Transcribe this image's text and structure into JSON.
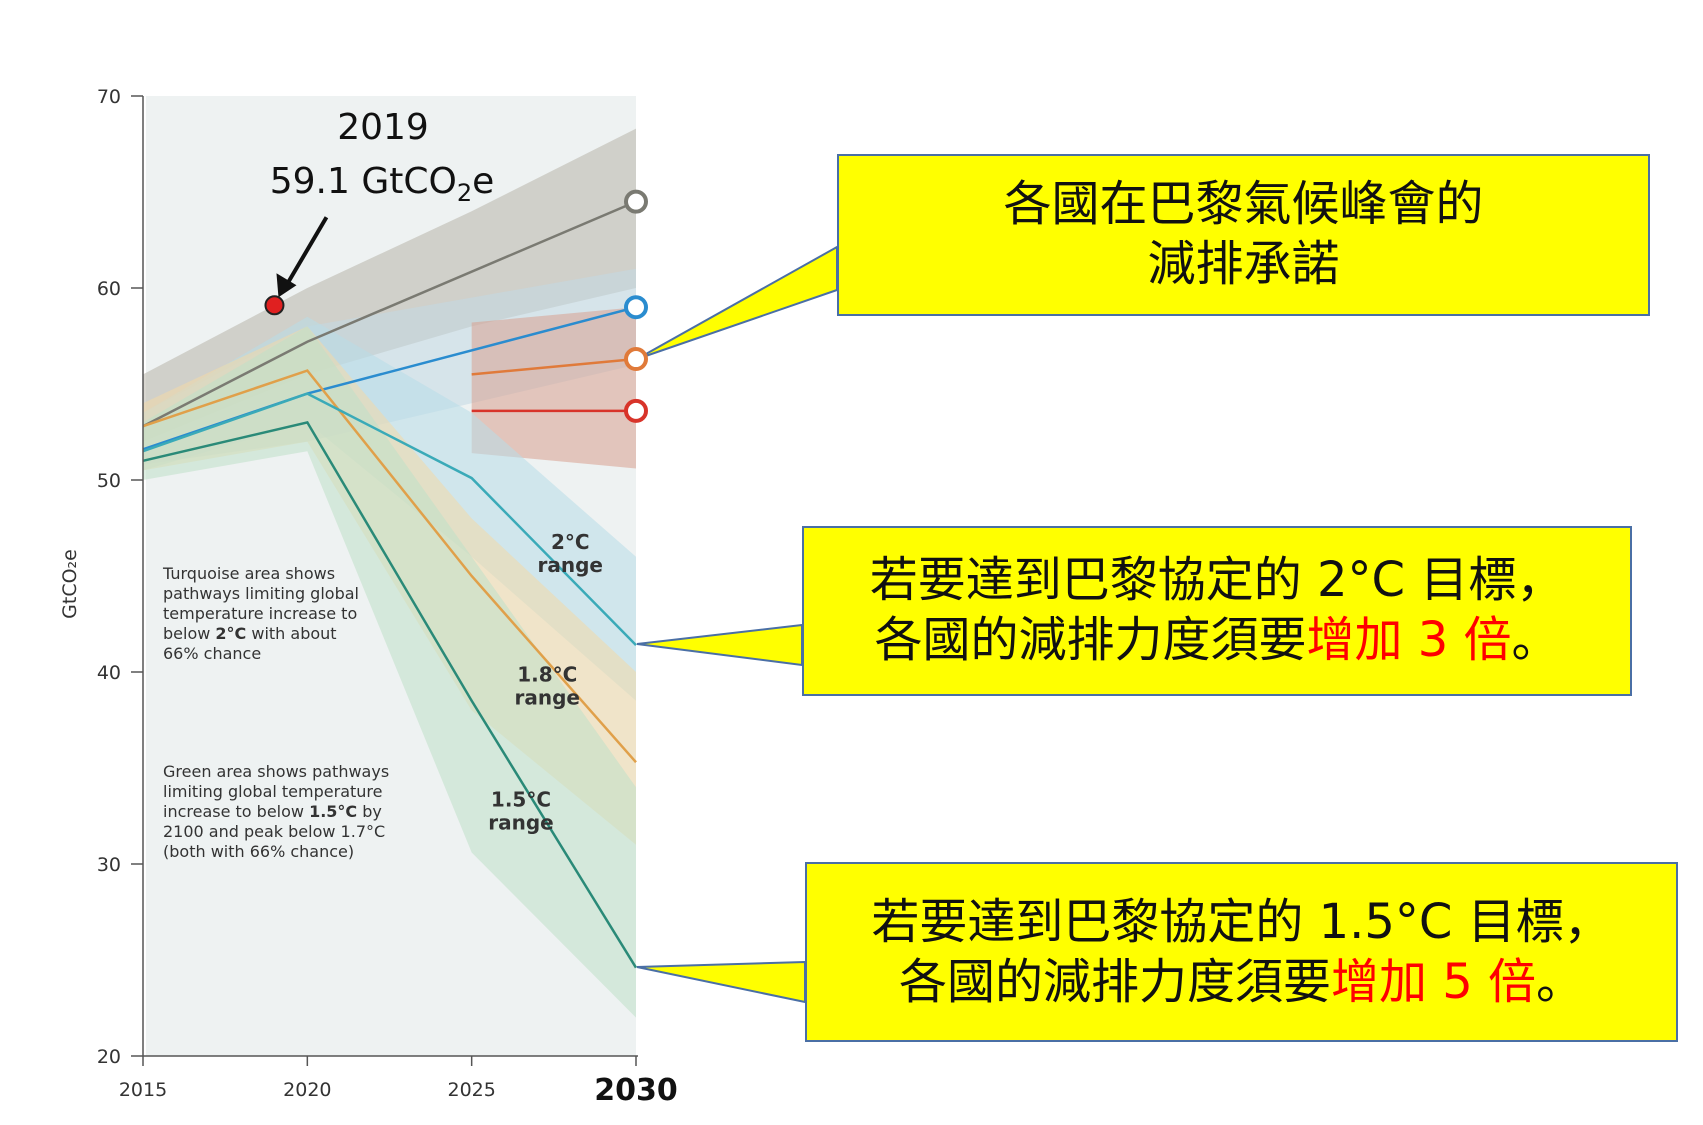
{
  "chart_data": {
    "type": "line",
    "ylabel": "GtCO₂e",
    "ylim": [
      20,
      70
    ],
    "yticks": [
      20,
      30,
      40,
      50,
      60,
      70
    ],
    "xlim": [
      2015,
      2030
    ],
    "xticks": [
      2015,
      2020,
      2025,
      2030
    ],
    "xtick_labels": [
      "2015",
      "2020",
      "2025",
      "2030"
    ],
    "bold_xtick": "2030",
    "grid": false,
    "series": [
      {
        "color": "#7a7a72",
        "x": [
          2015,
          2020,
          2030
        ],
        "y": [
          52.8,
          57.2,
          64.5
        ]
      },
      {
        "color": "#2a8ccf",
        "x": [
          2015,
          2020,
          2030
        ],
        "y": [
          51.6,
          54.5,
          59.0
        ]
      },
      {
        "color": "#e07a3a",
        "x": [
          2025,
          2030
        ],
        "y": [
          55.5,
          56.3
        ]
      },
      {
        "color": "#d8342a",
        "x": [
          2025,
          2030
        ],
        "y": [
          53.6,
          53.6
        ]
      },
      {
        "color": "#e0a04a",
        "x": [
          2015,
          2020,
          2025,
          2030
        ],
        "y": [
          52.8,
          55.7,
          45.0,
          35.3
        ]
      },
      {
        "color": "#3aaab8",
        "x": [
          2015,
          2020,
          2025,
          2030
        ],
        "y": [
          51.5,
          54.5,
          50.1,
          41.4
        ]
      },
      {
        "color": "#2a8a78",
        "x": [
          2015,
          2020,
          2025,
          2030
        ],
        "y": [
          51.0,
          53.0,
          38.5,
          24.6
        ]
      }
    ],
    "bands": [
      {
        "color": "#b8b4aa",
        "x": [
          2015,
          2020,
          2025,
          2030
        ],
        "lower": [
          52.0,
          55.5,
          58.0,
          60.0
        ],
        "upper": [
          55.5,
          60.0,
          64.0,
          68.3
        ]
      },
      {
        "color": "#c2d8e4",
        "x": [
          2015,
          2020,
          2025,
          2030
        ],
        "lower": [
          50.8,
          52.0,
          54.0,
          56.0
        ],
        "upper": [
          53.5,
          58.0,
          59.5,
          61.0
        ]
      },
      {
        "color": "#d9a090",
        "x": [
          2025,
          2030
        ],
        "lower": [
          51.4,
          50.6
        ],
        "upper": [
          58.2,
          59.0
        ]
      },
      {
        "color": "#b8dce8",
        "x": [
          2015,
          2020,
          2025,
          2030
        ],
        "lower": [
          50.5,
          53.0,
          46.0,
          38.5
        ],
        "upper": [
          53.5,
          58.5,
          53.5,
          46.0
        ]
      },
      {
        "color": "#f2d8a8",
        "x": [
          2015,
          2020,
          2025,
          2030
        ],
        "lower": [
          50.5,
          52.0,
          38.0,
          31.0
        ],
        "upper": [
          54.0,
          58.0,
          48.0,
          40.0
        ]
      },
      {
        "color": "#bfe0c8",
        "x": [
          2015,
          2020,
          2025,
          2030
        ],
        "lower": [
          50.0,
          51.5,
          30.6,
          22.0
        ],
        "upper": [
          53.0,
          58.0,
          46.0,
          34.0
        ]
      }
    ],
    "end_markers": [
      {
        "color": "#7a7a72",
        "y": 64.5
      },
      {
        "color": "#2a8ccf",
        "y": 59.0
      },
      {
        "color": "#e07a3a",
        "y": 56.3
      },
      {
        "color": "#d8342a",
        "y": 53.6
      }
    ],
    "highlight_point": {
      "x": 2019,
      "y": 59.1,
      "color": "#e02020",
      "year_label": "2019",
      "value_label": "59.1 GtCO",
      "value_sub": "2",
      "value_suffix": "e"
    },
    "range_labels": [
      {
        "line1": "2°C",
        "line2": "range",
        "x": 2028.0,
        "y": 46.4
      },
      {
        "line1": "1.8°C",
        "line2": "range",
        "x": 2027.3,
        "y": 39.5
      },
      {
        "line1": "1.5°C",
        "line2": "range",
        "x": 2026.5,
        "y": 33.0
      }
    ],
    "notes": [
      {
        "lines": [
          [
            {
              "t": "Turquoise area shows"
            }
          ],
          [
            {
              "t": "pathways limiting global"
            }
          ],
          [
            {
              "t": "temperature increase to"
            }
          ],
          [
            {
              "t": "below "
            },
            {
              "t": "2°C",
              "b": true
            },
            {
              "t": " with about"
            }
          ],
          [
            {
              "t": "66% chance"
            }
          ]
        ]
      },
      {
        "lines": [
          [
            {
              "t": "Green area shows pathways"
            }
          ],
          [
            {
              "t": "limiting global temperature"
            }
          ],
          [
            {
              "t": "increase to below "
            },
            {
              "t": "1.5°C",
              "b": true
            },
            {
              "t": " by"
            }
          ],
          [
            {
              "t": "2100 and peak below 1.7°C"
            }
          ],
          [
            {
              "t": "(both with 66% chance)"
            }
          ]
        ]
      }
    ]
  },
  "callouts": {
    "pledges": {
      "line1": "各國在巴黎氣候峰會的",
      "line2": "減排承諾"
    },
    "two_c": {
      "line1": "若要達到巴黎協定的 2°C 目標，",
      "line2_prefix": "各國的減排力度須要",
      "line2_red": "增加 3 倍",
      "line2_suffix": "。"
    },
    "one_five_c": {
      "line1": "若要達到巴黎協定的 1.5°C 目標，",
      "line2_prefix": "各國的減排力度須要",
      "line2_red": "增加 5 倍",
      "line2_suffix": "。"
    }
  }
}
